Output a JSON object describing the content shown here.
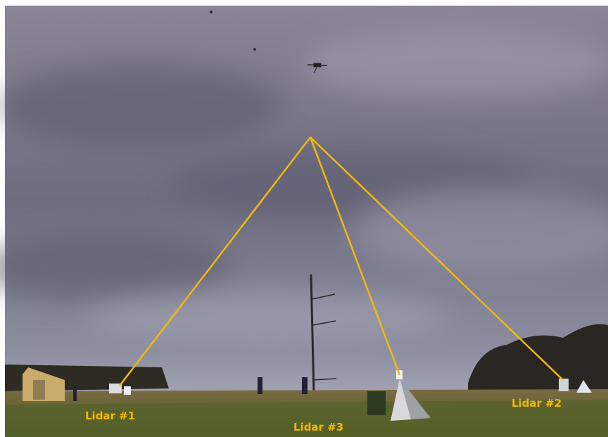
{
  "annotations": [
    {
      "label": "Lidar #1"
    },
    {
      "label": "Lidar #2"
    },
    {
      "label": "Lidar #3"
    }
  ]
}
